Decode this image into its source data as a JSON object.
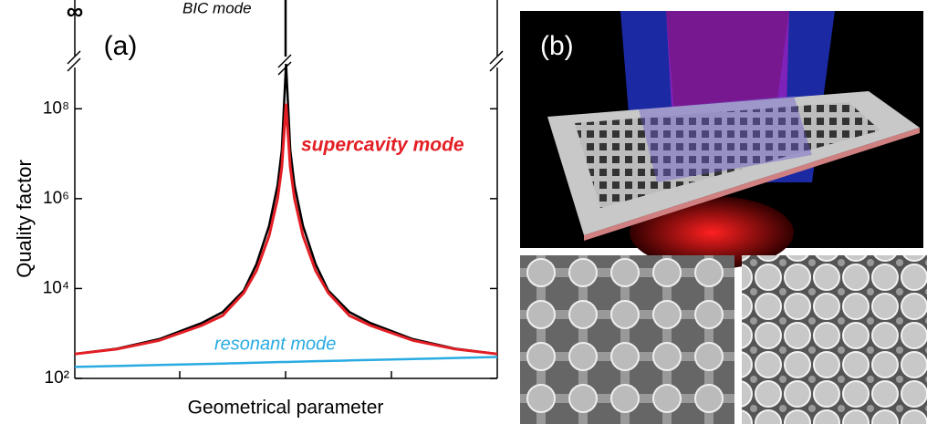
{
  "chart_data": {
    "type": "line",
    "panel_label": "(a)",
    "top_label": "∞",
    "x_label": "Geometrical parameter",
    "y_label": "Quality factor",
    "yscale": "log",
    "xlim": [
      0,
      1
    ],
    "ylim": [
      100,
      1000000000
    ],
    "yticks": [
      {
        "value": 100,
        "label": "10²"
      },
      {
        "value": 10000,
        "label": "10⁴"
      },
      {
        "value": 1000000,
        "label": "10⁶"
      },
      {
        "value": 100000000,
        "label": "10⁸"
      }
    ],
    "x": [
      0,
      0.1,
      0.2,
      0.3,
      0.35,
      0.4,
      0.43,
      0.46,
      0.48,
      0.49,
      0.5,
      0.51,
      0.52,
      0.54,
      0.57,
      0.6,
      0.65,
      0.7,
      0.8,
      0.9,
      1
    ],
    "series": [
      {
        "name": "BIC mode",
        "color": "#000000",
        "values": [
          350,
          460,
          750,
          1700,
          3000,
          9000,
          35000,
          250000,
          2000000,
          12000000,
          1000000000,
          12000000,
          2000000,
          250000,
          35000,
          9000,
          3000,
          1700,
          750,
          460,
          350
        ]
      },
      {
        "name": "supercavity mode",
        "color": "#e31e24",
        "values": [
          350,
          450,
          700,
          1500,
          2500,
          8000,
          25000,
          150000,
          1000000,
          5000000,
          130000000,
          5000000,
          1000000,
          150000,
          25000,
          8000,
          2500,
          1500,
          700,
          450,
          350
        ]
      },
      {
        "name": "resonant mode",
        "color": "#29abe2",
        "values": [
          180,
          189,
          199,
          209,
          214,
          220,
          224,
          228,
          230,
          232,
          232,
          233,
          235,
          237,
          242,
          245,
          251,
          257,
          270,
          285,
          300
        ]
      }
    ]
  },
  "figure": {
    "panel_b_label": "(b)"
  }
}
